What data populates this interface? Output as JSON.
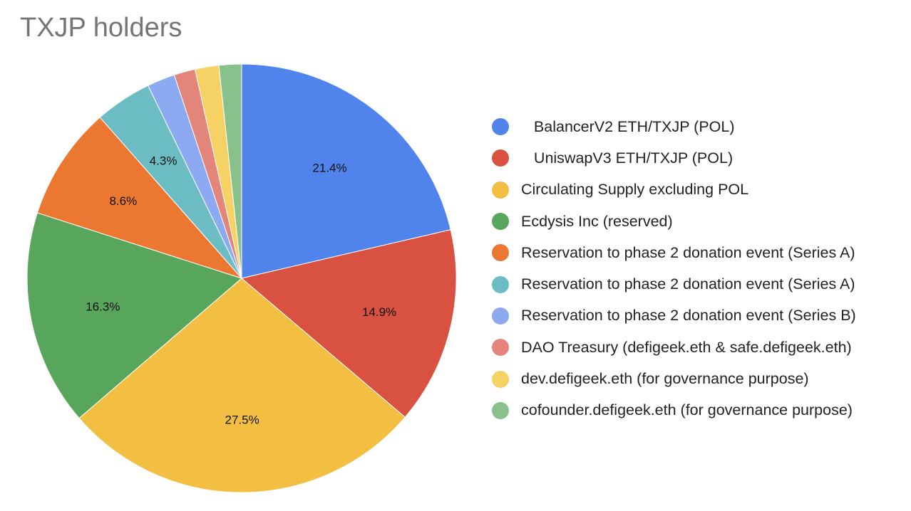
{
  "chart_data": {
    "type": "pie",
    "title": "TXJP holders",
    "slices": [
      {
        "label": "   BalancerV2 ETH/TXJP (POL)",
        "value": 21.4,
        "display": "21.4%",
        "color": "#5084ec"
      },
      {
        "label": "   UniswapV3 ETH/TXJP (POL)",
        "value": 14.9,
        "display": "14.9%",
        "color": "#d95141"
      },
      {
        "label": "Circulating Supply excluding POL",
        "value": 27.5,
        "display": "27.5%",
        "color": "#f2bf42"
      },
      {
        "label": "Ecdysis Inc (reserved)",
        "value": 16.3,
        "display": "16.3%",
        "color": "#58a55c"
      },
      {
        "label": "Reservation to phase 2 donation event (Series A)",
        "value": 8.6,
        "display": "8.6%",
        "color": "#ec7730"
      },
      {
        "label": "Reservation to phase 2 donation event (Series A)",
        "value": 4.3,
        "display": "4.3%",
        "color": "#6bbdc3"
      },
      {
        "label": "Reservation to phase 2 donation event (Series B)",
        "value": 2.1,
        "display": "",
        "color": "#8ca9f2"
      },
      {
        "label": "DAO Treasury (defigeek.eth & safe.defigeek.eth)",
        "value": 1.6,
        "display": "",
        "color": "#e4857b"
      },
      {
        "label": "dev.defigeek.eth (for governance purpose)",
        "value": 1.8,
        "display": "",
        "color": "#f6d265"
      },
      {
        "label": "cofounder.defigeek.eth (for governance purpose)",
        "value": 1.7,
        "display": "",
        "color": "#88c18c"
      }
    ]
  }
}
